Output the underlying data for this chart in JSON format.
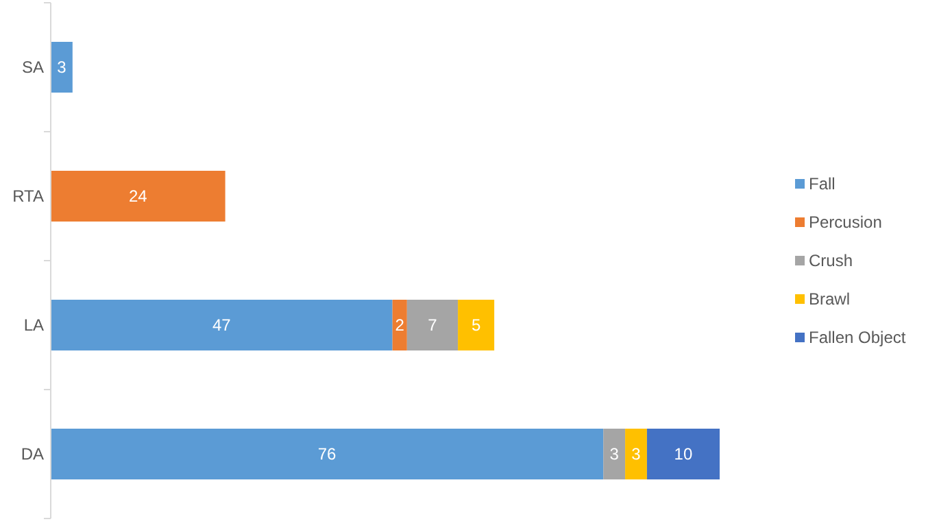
{
  "chart_data": {
    "type": "bar",
    "orientation": "horizontal",
    "stacked": true,
    "data_labels": true,
    "legend": "right",
    "categories": [
      "SA",
      "RTA",
      "LA",
      "DA"
    ],
    "series": [
      {
        "name": "Fall",
        "color": "#5b9bd5",
        "values": [
          3,
          null,
          47,
          76
        ]
      },
      {
        "name": "Percusion",
        "color": "#ed7d31",
        "values": [
          null,
          24,
          2,
          null
        ]
      },
      {
        "name": "Crush",
        "color": "#a5a5a5",
        "values": [
          null,
          null,
          7,
          3
        ]
      },
      {
        "name": "Brawl",
        "color": "#ffc000",
        "values": [
          null,
          null,
          5,
          3
        ]
      },
      {
        "name": "Fallen Object",
        "color": "#4472c4",
        "values": [
          null,
          null,
          null,
          10
        ]
      }
    ]
  }
}
